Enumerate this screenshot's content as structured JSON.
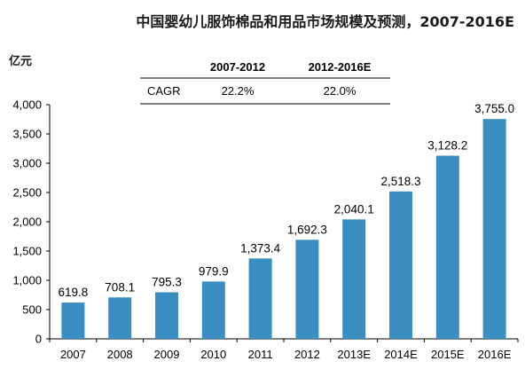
{
  "title": "中国婴幼儿服饰棉品和用品市场规模及预测，2007-2016E",
  "cagr_table": {
    "columns": [
      "2007-2012",
      "2012-2016E"
    ],
    "rows": [
      {
        "label": "CAGR",
        "values": [
          "22.2%",
          "22.0%"
        ]
      }
    ]
  },
  "colors": {
    "bar": "#3a8ec2",
    "axis": "#000000",
    "table_rule": "#000000"
  },
  "chart_data": {
    "type": "bar",
    "title": "中国婴幼儿服饰棉品和用品市场规模及预测，2007-2016E",
    "ylabel": "亿元",
    "xlabel": "",
    "categories": [
      "2007",
      "2008",
      "2009",
      "2010",
      "2011",
      "2012",
      "2013E",
      "2014E",
      "2015E",
      "2016E"
    ],
    "values": [
      619.8,
      708.1,
      795.3,
      979.9,
      1373.4,
      1692.3,
      2040.1,
      2518.3,
      3128.2,
      3755.0
    ],
    "value_labels": [
      "619.8",
      "708.1",
      "795.3",
      "979.9",
      "1,373.4",
      "1,692.3",
      "2,040.1",
      "2,518.3",
      "3,128.2",
      "3,755.0"
    ],
    "ylim": [
      0,
      4000
    ],
    "yticks": [
      0,
      500,
      1000,
      1500,
      2000,
      2500,
      3000,
      3500,
      4000
    ],
    "ytick_labels": [
      "0",
      "500",
      "1,000",
      "1,500",
      "2,000",
      "2,500",
      "3,000",
      "3,500",
      "4,000"
    ],
    "grid": false,
    "legend": "none"
  }
}
